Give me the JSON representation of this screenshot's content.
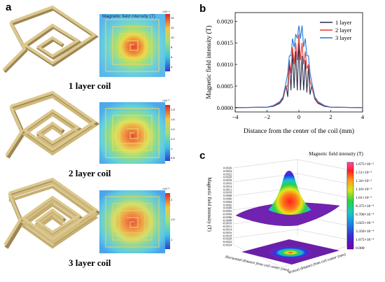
{
  "panel_a": {
    "letter": "a",
    "heatmap_title": "Magnetic field intensity (T)",
    "rows": [
      {
        "caption": "1 layer coil",
        "exponent": "×10⁻⁴",
        "ticks": [
          "14",
          "12",
          "10",
          "8",
          "6",
          "4"
        ]
      },
      {
        "caption": "2 layer coil",
        "exponent": "×10⁻³",
        "ticks": [
          "1.8",
          "1.6",
          "1.4",
          "1.2",
          "1",
          "0.8"
        ]
      },
      {
        "caption": "3 layer coil",
        "exponent": "×10⁻³",
        "ticks": [
          "2",
          "1.5",
          "1"
        ]
      }
    ]
  },
  "panel_b": {
    "letter": "b",
    "chart_data": {
      "type": "line",
      "xlabel": "Distance from the center of the coil (mm)",
      "ylabel": "Magnetic field intensity (T)",
      "xlim": [
        -4,
        4
      ],
      "ylim": [
        -0.0001,
        0.0022
      ],
      "xticks": [
        "−4",
        "−2",
        "0",
        "2",
        "4"
      ],
      "yticks": [
        "0.0000",
        "0.0005",
        "0.0010",
        "0.0015",
        "0.0020"
      ],
      "legend_position": "top-right",
      "x": [
        -4.0,
        -2.0,
        -1.6,
        -1.2,
        -1.0,
        -0.8,
        -0.7,
        -0.6,
        -0.5,
        -0.4,
        -0.3,
        -0.2,
        -0.1,
        0.0,
        0.1,
        0.2,
        0.3,
        0.4,
        0.5,
        0.6,
        0.7,
        0.8,
        1.0,
        1.2,
        1.6,
        2.0,
        4.0
      ],
      "series": [
        {
          "name": "1 layer",
          "color": "#2b2b4a",
          "values": [
            0.0,
            1e-05,
            3e-05,
            0.0001,
            0.0002,
            0.0005,
            0.00025,
            0.0011,
            0.0004,
            0.0013,
            0.00045,
            0.0013,
            0.0004,
            0.0015,
            0.0004,
            0.0012,
            0.0004,
            0.0011,
            0.00035,
            0.00095,
            0.0003,
            0.0005,
            0.0002,
            0.0001,
            3e-05,
            1e-05,
            0.0
          ]
        },
        {
          "name": "2 layer",
          "color": "#e03a3a",
          "values": [
            0.0,
            1e-05,
            4e-05,
            0.00012,
            0.00022,
            0.0005,
            0.0005,
            0.0011,
            0.0008,
            0.0014,
            0.001,
            0.0015,
            0.0011,
            0.0017,
            0.0011,
            0.0015,
            0.001,
            0.0013,
            0.0009,
            0.001,
            0.0006,
            0.0005,
            0.00022,
            0.00012,
            4e-05,
            1e-05,
            0.0
          ]
        },
        {
          "name": "3 layer",
          "color": "#1f77d4",
          "values": [
            0.0,
            1e-05,
            5e-05,
            0.00014,
            0.00025,
            0.0006,
            0.0008,
            0.0012,
            0.0012,
            0.0016,
            0.0014,
            0.0017,
            0.0016,
            0.0019,
            0.0016,
            0.0019,
            0.0014,
            0.0016,
            0.0012,
            0.0012,
            0.0008,
            0.0006,
            0.00025,
            0.00014,
            5e-05,
            1e-05,
            0.0
          ]
        }
      ]
    }
  },
  "panel_c": {
    "letter": "c",
    "colorbar_title": "Magnetic field intensity (T)",
    "colorbar_ticks": [
      "1.675×10⁻³",
      "1.51×10⁻³",
      "1.34×10⁻³",
      "1.18×10⁻³",
      "1.01×10⁻³",
      "8.375×10⁻⁴",
      "6.700×10⁻⁴",
      "5.025×10⁻⁴",
      "3.350×10⁻⁴",
      "1.675×10⁻⁴",
      "0.000"
    ],
    "z_label": "Magnetic field intensity (T)",
    "z_ticks": [
      "0.0026",
      "0.0024",
      "0.0022",
      "0.0020",
      "0.0018",
      "0.0016",
      "0.0014",
      "0.0012",
      "0.0010",
      "0.0008",
      "0.0006",
      "0.0004",
      "0.0002",
      "0.0000",
      "-0.0002",
      "-0.0004",
      "-0.0006",
      "-0.0008",
      "-0.0010",
      "-0.0012",
      "-0.0014",
      "-0.0016",
      "-0.0018",
      "-0.0020",
      "-0.0022",
      "-0.0024"
    ],
    "x_label": "Horizontal distance from coil center (mm)",
    "y_label": "Vertical distance from coil center (mm)"
  },
  "colors": {
    "coil": "#d8c38b",
    "coil_dark": "#9c8653",
    "heat_low": "#5fc8e6",
    "heat_high": "#e83d3d"
  }
}
